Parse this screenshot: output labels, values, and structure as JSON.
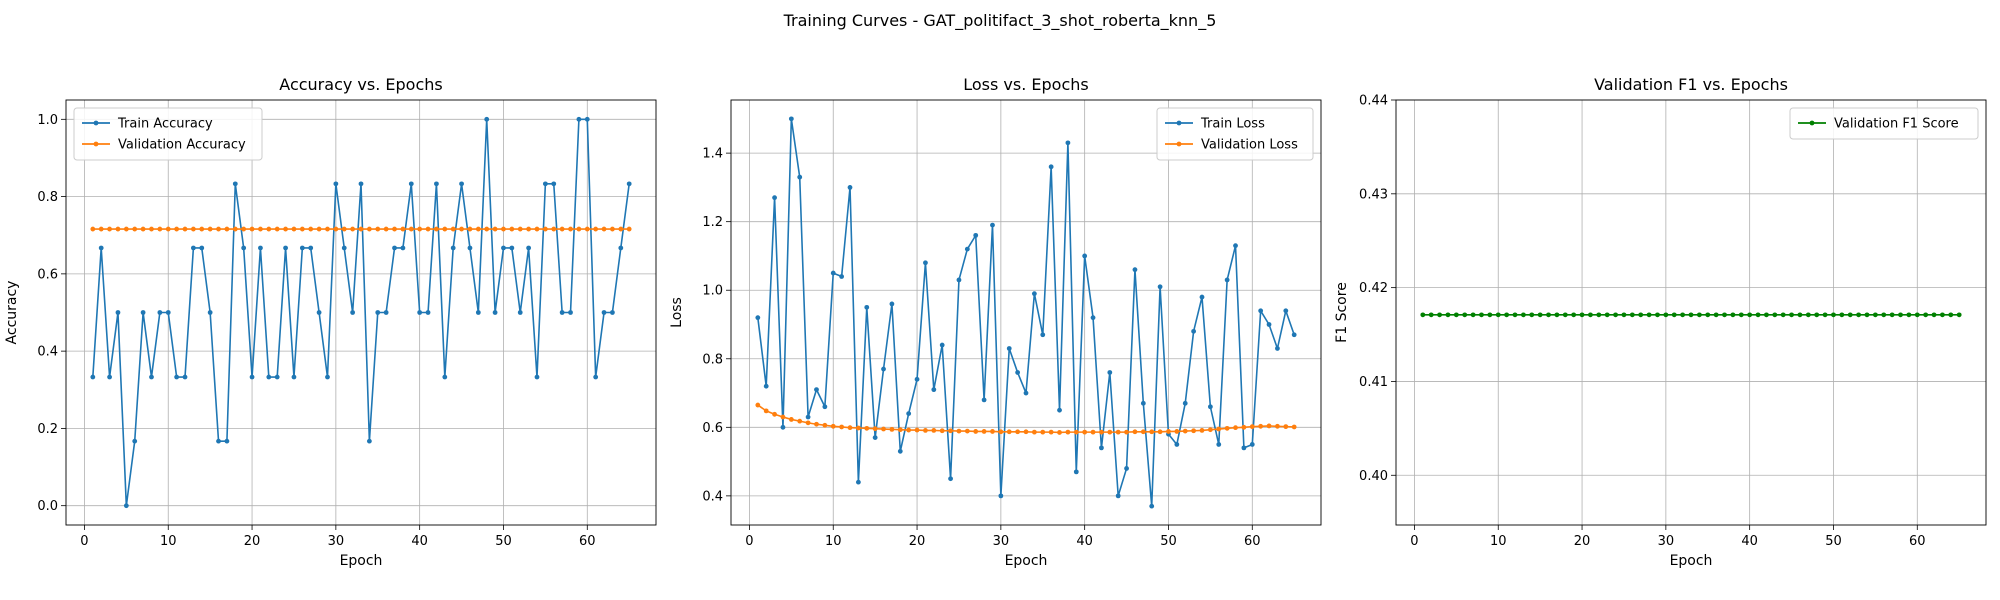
{
  "figure": {
    "title": "Training Curves - GAT_politifact_3_shot_roberta_knn_5"
  },
  "chart_data": [
    {
      "type": "line",
      "title": "Accuracy vs. Epochs",
      "xlabel": "Epoch",
      "ylabel": "Accuracy",
      "xlim": [
        -2.2,
        68.2
      ],
      "ylim": [
        -0.05,
        1.05
      ],
      "xticks": [
        0,
        10,
        20,
        30,
        40,
        50,
        60
      ],
      "yticks": [
        0.0,
        0.2,
        0.4,
        0.6,
        0.8,
        1.0
      ],
      "ytick_labels": [
        "0.0",
        "0.2",
        "0.4",
        "0.6",
        "0.8",
        "1.0"
      ],
      "grid": true,
      "legend": "upper-left",
      "x": [
        1,
        2,
        3,
        4,
        5,
        6,
        7,
        8,
        9,
        10,
        11,
        12,
        13,
        14,
        15,
        16,
        17,
        18,
        19,
        20,
        21,
        22,
        23,
        24,
        25,
        26,
        27,
        28,
        29,
        30,
        31,
        32,
        33,
        34,
        35,
        36,
        37,
        38,
        39,
        40,
        41,
        42,
        43,
        44,
        45,
        46,
        47,
        48,
        49,
        50,
        51,
        52,
        53,
        54,
        55,
        56,
        57,
        58,
        59,
        60,
        61,
        62,
        63,
        64,
        65
      ],
      "series": [
        {
          "name": "Train Accuracy",
          "color": "#1f77b4",
          "values": [
            0.333,
            0.667,
            0.333,
            0.5,
            0.0,
            0.167,
            0.5,
            0.333,
            0.5,
            0.5,
            0.333,
            0.333,
            0.667,
            0.667,
            0.5,
            0.167,
            0.167,
            0.833,
            0.667,
            0.333,
            0.667,
            0.333,
            0.333,
            0.667,
            0.333,
            0.667,
            0.667,
            0.5,
            0.333,
            0.833,
            0.667,
            0.5,
            0.833,
            0.167,
            0.5,
            0.5,
            0.667,
            0.667,
            0.833,
            0.5,
            0.5,
            0.833,
            0.333,
            0.667,
            0.833,
            0.667,
            0.5,
            1.0,
            0.5,
            0.667,
            0.667,
            0.5,
            0.667,
            0.333,
            0.833,
            0.833,
            0.5,
            0.5,
            1.0,
            1.0,
            0.333,
            0.5,
            0.5,
            0.667,
            0.833
          ]
        },
        {
          "name": "Validation Accuracy",
          "color": "#ff7f0e",
          "values": [
            0.716,
            0.716,
            0.716,
            0.716,
            0.716,
            0.716,
            0.716,
            0.716,
            0.716,
            0.716,
            0.716,
            0.716,
            0.716,
            0.716,
            0.716,
            0.716,
            0.716,
            0.716,
            0.716,
            0.716,
            0.716,
            0.716,
            0.716,
            0.716,
            0.716,
            0.716,
            0.716,
            0.716,
            0.716,
            0.716,
            0.716,
            0.716,
            0.716,
            0.716,
            0.716,
            0.716,
            0.716,
            0.716,
            0.716,
            0.716,
            0.716,
            0.716,
            0.716,
            0.716,
            0.716,
            0.716,
            0.716,
            0.716,
            0.716,
            0.716,
            0.716,
            0.716,
            0.716,
            0.716,
            0.716,
            0.716,
            0.716,
            0.716,
            0.716,
            0.716,
            0.716,
            0.716,
            0.716,
            0.716,
            0.716
          ]
        }
      ]
    },
    {
      "type": "line",
      "title": "Loss vs. Epochs",
      "xlabel": "Epoch",
      "ylabel": "Loss",
      "xlim": [
        -2.2,
        68.2
      ],
      "ylim": [
        0.315,
        1.555
      ],
      "xticks": [
        0,
        10,
        20,
        30,
        40,
        50,
        60
      ],
      "yticks": [
        0.4,
        0.6,
        0.8,
        1.0,
        1.2,
        1.4
      ],
      "ytick_labels": [
        "0.4",
        "0.6",
        "0.8",
        "1.0",
        "1.2",
        "1.4"
      ],
      "grid": true,
      "legend": "upper-right",
      "x": [
        1,
        2,
        3,
        4,
        5,
        6,
        7,
        8,
        9,
        10,
        11,
        12,
        13,
        14,
        15,
        16,
        17,
        18,
        19,
        20,
        21,
        22,
        23,
        24,
        25,
        26,
        27,
        28,
        29,
        30,
        31,
        32,
        33,
        34,
        35,
        36,
        37,
        38,
        39,
        40,
        41,
        42,
        43,
        44,
        45,
        46,
        47,
        48,
        49,
        50,
        51,
        52,
        53,
        54,
        55,
        56,
        57,
        58,
        59,
        60,
        61,
        62,
        63,
        64,
        65
      ],
      "series": [
        {
          "name": "Train Loss",
          "color": "#1f77b4",
          "values": [
            0.92,
            0.72,
            1.27,
            0.6,
            1.5,
            1.33,
            0.63,
            0.71,
            0.66,
            1.05,
            1.04,
            1.3,
            0.44,
            0.95,
            0.57,
            0.77,
            0.96,
            0.53,
            0.64,
            0.74,
            1.08,
            0.71,
            0.84,
            0.45,
            1.03,
            1.12,
            1.16,
            0.68,
            1.19,
            0.4,
            0.83,
            0.76,
            0.7,
            0.99,
            0.87,
            1.36,
            0.65,
            1.43,
            0.47,
            1.1,
            0.92,
            0.54,
            0.76,
            0.4,
            0.48,
            1.06,
            0.67,
            0.37,
            1.01,
            0.58,
            0.55,
            0.67,
            0.88,
            0.98,
            0.66,
            0.55,
            1.03,
            1.13,
            0.54,
            0.55,
            0.94,
            0.9,
            0.83,
            0.94,
            0.87
          ]
        },
        {
          "name": "Validation Loss",
          "color": "#ff7f0e",
          "values": [
            0.665,
            0.648,
            0.638,
            0.63,
            0.623,
            0.618,
            0.613,
            0.609,
            0.606,
            0.603,
            0.601,
            0.599,
            0.598,
            0.597,
            0.596,
            0.595,
            0.594,
            0.593,
            0.592,
            0.592,
            0.591,
            0.591,
            0.59,
            0.59,
            0.589,
            0.589,
            0.588,
            0.588,
            0.588,
            0.587,
            0.587,
            0.587,
            0.587,
            0.586,
            0.586,
            0.586,
            0.585,
            0.586,
            0.586,
            0.586,
            0.586,
            0.586,
            0.586,
            0.586,
            0.586,
            0.587,
            0.587,
            0.587,
            0.587,
            0.588,
            0.588,
            0.589,
            0.59,
            0.591,
            0.593,
            0.595,
            0.597,
            0.599,
            0.6,
            0.602,
            0.603,
            0.604,
            0.603,
            0.602,
            0.601
          ]
        }
      ]
    },
    {
      "type": "line",
      "title": "Validation F1 vs. Epochs",
      "xlabel": "Epoch",
      "ylabel": "F1 Score",
      "xlim": [
        -2.2,
        68.2
      ],
      "ylim": [
        0.3947,
        0.44
      ],
      "xticks": [
        0,
        10,
        20,
        30,
        40,
        50,
        60
      ],
      "yticks": [
        0.4,
        0.41,
        0.42,
        0.43,
        0.44
      ],
      "ytick_labels": [
        "0.40",
        "0.41",
        "0.42",
        "0.43",
        "0.44"
      ],
      "grid": true,
      "legend": "upper-right",
      "x": [
        1,
        2,
        3,
        4,
        5,
        6,
        7,
        8,
        9,
        10,
        11,
        12,
        13,
        14,
        15,
        16,
        17,
        18,
        19,
        20,
        21,
        22,
        23,
        24,
        25,
        26,
        27,
        28,
        29,
        30,
        31,
        32,
        33,
        34,
        35,
        36,
        37,
        38,
        39,
        40,
        41,
        42,
        43,
        44,
        45,
        46,
        47,
        48,
        49,
        50,
        51,
        52,
        53,
        54,
        55,
        56,
        57,
        58,
        59,
        60,
        61,
        62,
        63,
        64,
        65
      ],
      "series": [
        {
          "name": "Validation F1 Score",
          "color": "#008000",
          "values": [
            0.4171,
            0.4171,
            0.4171,
            0.4171,
            0.4171,
            0.4171,
            0.4171,
            0.4171,
            0.4171,
            0.4171,
            0.4171,
            0.4171,
            0.4171,
            0.4171,
            0.4171,
            0.4171,
            0.4171,
            0.4171,
            0.4171,
            0.4171,
            0.4171,
            0.4171,
            0.4171,
            0.4171,
            0.4171,
            0.4171,
            0.4171,
            0.4171,
            0.4171,
            0.4171,
            0.4171,
            0.4171,
            0.4171,
            0.4171,
            0.4171,
            0.4171,
            0.4171,
            0.4171,
            0.4171,
            0.4171,
            0.4171,
            0.4171,
            0.4171,
            0.4171,
            0.4171,
            0.4171,
            0.4171,
            0.4171,
            0.4171,
            0.4171,
            0.4171,
            0.4171,
            0.4171,
            0.4171,
            0.4171,
            0.4171,
            0.4171,
            0.4171,
            0.4171,
            0.4171,
            0.4171,
            0.4171,
            0.4171,
            0.4171,
            0.4171
          ]
        }
      ]
    }
  ]
}
